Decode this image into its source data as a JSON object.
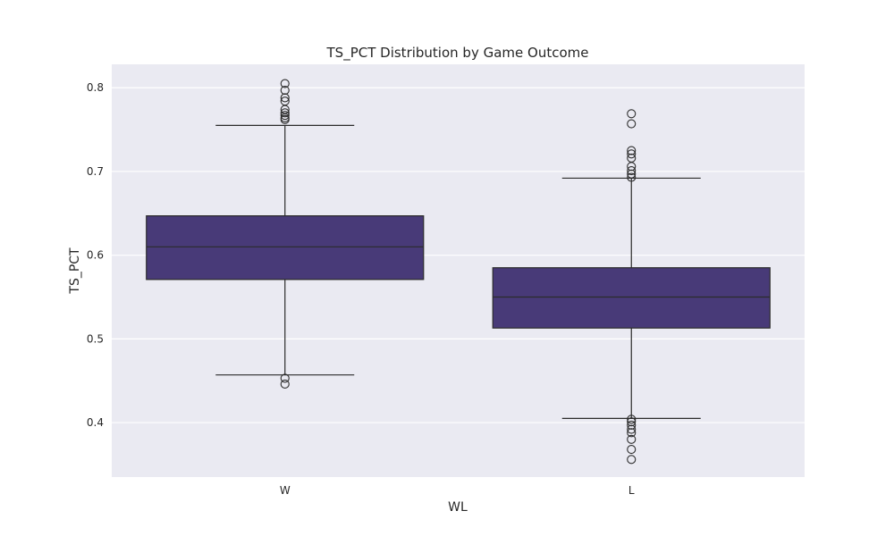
{
  "chart_data": {
    "type": "box",
    "title": "TS_PCT Distribution by Game Outcome",
    "xlabel": "WL",
    "ylabel": "TS_PCT",
    "ylim": [
      0.335,
      0.828
    ],
    "yticks": [
      0.4,
      0.5,
      0.6,
      0.7,
      0.8
    ],
    "ytick_labels": [
      "0.4",
      "0.5",
      "0.6",
      "0.7",
      "0.8"
    ],
    "grid": true,
    "colors": {
      "background": "#eaeaf2",
      "grid": "#ffffff",
      "box_fill": "#483a78",
      "line": "#2b2b2b"
    },
    "categories": [
      "W",
      "L"
    ],
    "boxes": [
      {
        "category": "W",
        "whisker_low": 0.457,
        "q1": 0.571,
        "median": 0.61,
        "q3": 0.647,
        "whisker_high": 0.755,
        "outliers": [
          0.446,
          0.453,
          0.762,
          0.764,
          0.767,
          0.77,
          0.774,
          0.784,
          0.788,
          0.797,
          0.805
        ]
      },
      {
        "category": "L",
        "whisker_low": 0.405,
        "q1": 0.513,
        "median": 0.55,
        "q3": 0.585,
        "whisker_high": 0.692,
        "outliers": [
          0.356,
          0.368,
          0.38,
          0.388,
          0.392,
          0.397,
          0.401,
          0.404,
          0.693,
          0.697,
          0.701,
          0.706,
          0.716,
          0.721,
          0.725,
          0.757,
          0.769
        ]
      }
    ]
  }
}
